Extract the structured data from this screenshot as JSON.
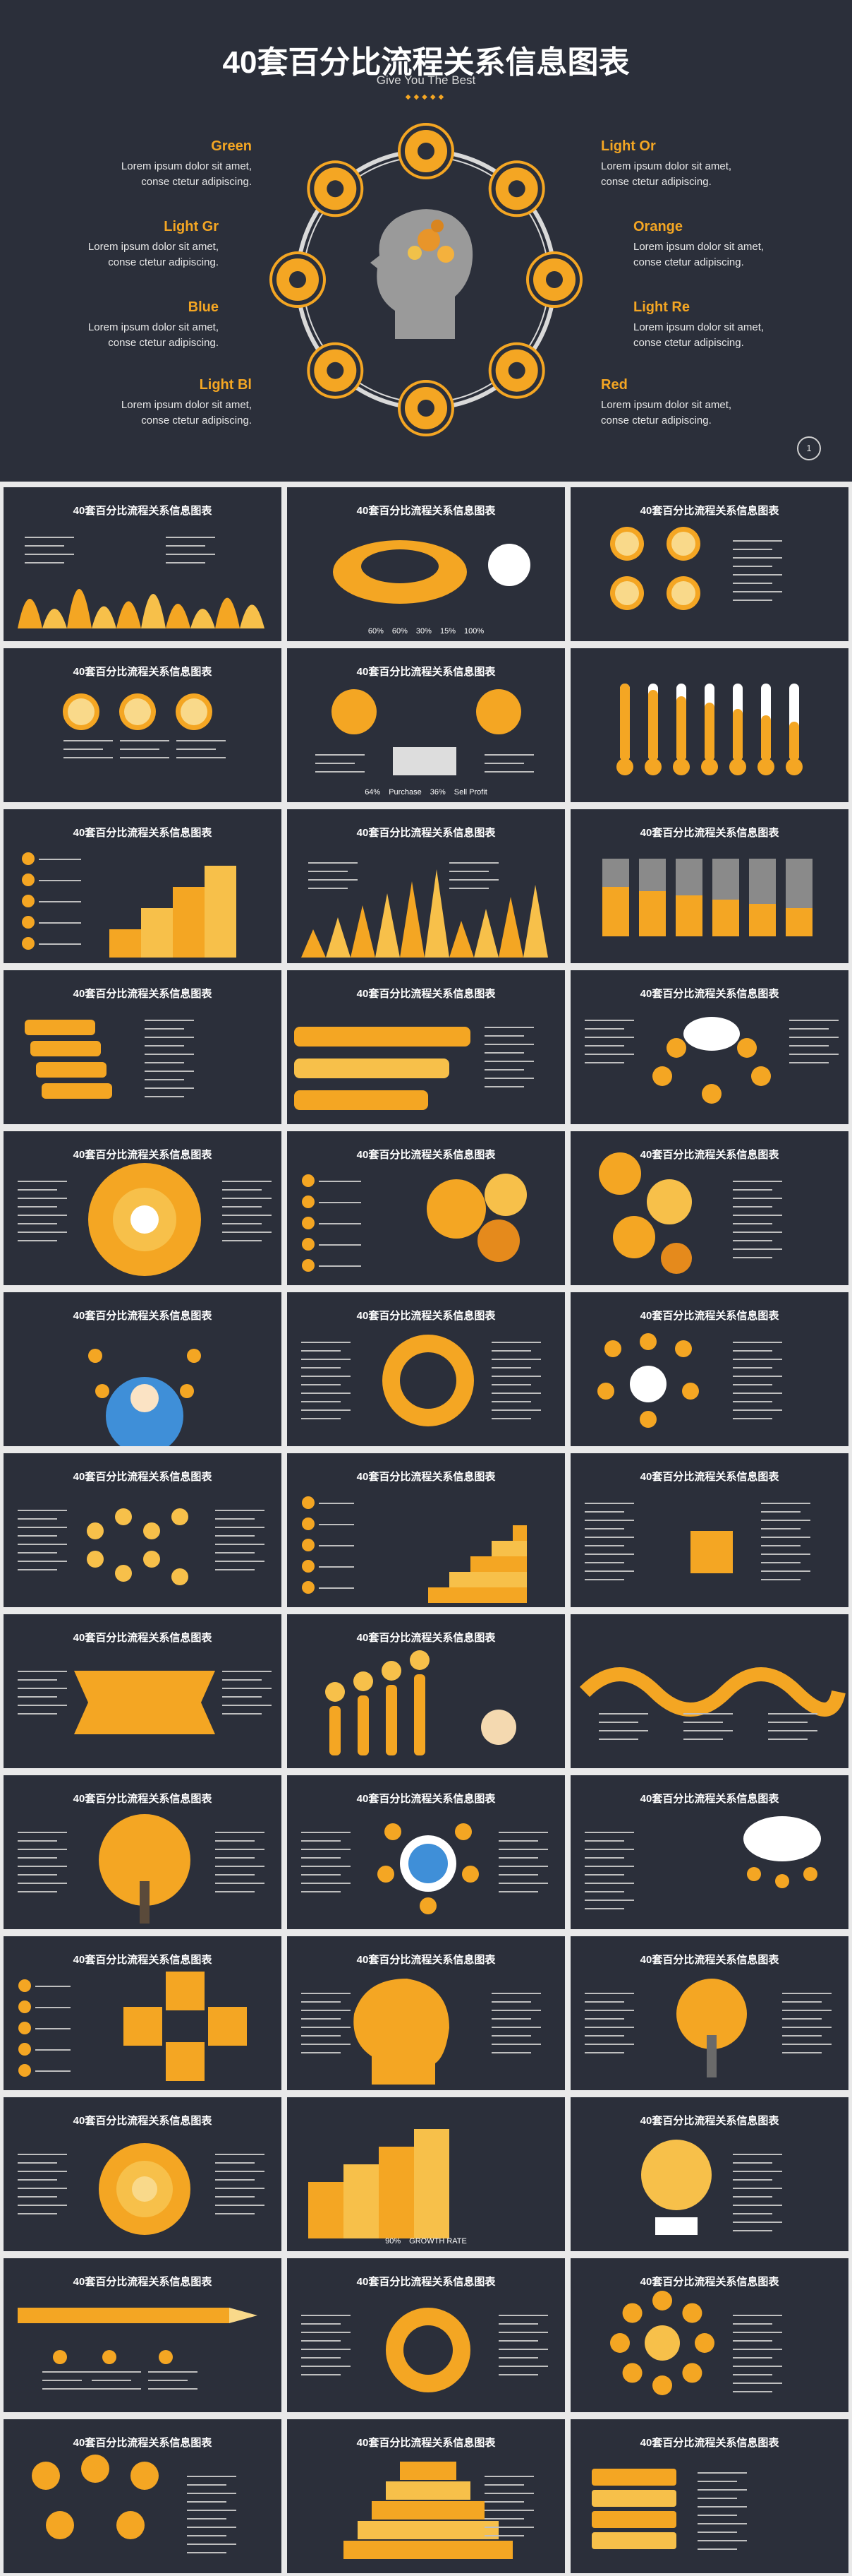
{
  "hero": {
    "title": "40套百分比流程关系信息图表",
    "subtitle": "Give You The Best",
    "dots": "◆◆◆◆◆",
    "page": "1",
    "labels": [
      {
        "title": "Green",
        "line1": "Lorem ipsum dolor sit amet,",
        "line2": "conse ctetur adipiscing."
      },
      {
        "title": "Light Gr",
        "line1": "Lorem ipsum dolor sit amet,",
        "line2": "conse ctetur adipiscing."
      },
      {
        "title": "Blue",
        "line1": "Lorem ipsum dolor sit amet,",
        "line2": "conse ctetur adipiscing."
      },
      {
        "title": "Light Bl",
        "line1": "Lorem ipsum dolor sit amet,",
        "line2": "conse ctetur adipiscing."
      },
      {
        "title": "Light Or",
        "line1": "Lorem ipsum dolor sit amet,",
        "line2": "conse ctetur adipiscing."
      },
      {
        "title": "Orange",
        "line1": "Lorem ipsum dolor sit amet,",
        "line2": "conse ctetur adipiscing."
      },
      {
        "title": "Light Re",
        "line1": "Lorem ipsum dolor sit amet,",
        "line2": "conse ctetur adipiscing."
      },
      {
        "title": "Red",
        "line1": "Lorem ipsum dolor sit amet,",
        "line2": "conse ctetur adipiscing."
      }
    ]
  },
  "thumbs": [
    {
      "title": "40套百分比流程关系信息图表",
      "kind": "mountains"
    },
    {
      "title": "40套百分比流程关系信息图表",
      "kind": "ring3d",
      "text": [
        "60%",
        "60%",
        "30%",
        "15%",
        "100%"
      ]
    },
    {
      "title": "40套百分比流程关系信息图表",
      "kind": "circles4"
    },
    {
      "title": "40套百分比流程关系信息图表",
      "kind": "circles3"
    },
    {
      "title": "40套百分比流程关系信息图表",
      "kind": "purchase",
      "text": [
        "64%",
        "Purchase",
        "36%",
        "Sell Profit"
      ]
    },
    {
      "title": "",
      "kind": "thermo"
    },
    {
      "title": "40套百分比流程关系信息图表",
      "kind": "steps"
    },
    {
      "title": "40套百分比流程关系信息图表",
      "kind": "spikes"
    },
    {
      "title": "40套百分比流程关系信息图表",
      "kind": "cylinders"
    },
    {
      "title": "40套百分比流程关系信息图表",
      "kind": "chat"
    },
    {
      "title": "40套百分比流程关系信息图表",
      "kind": "bars3"
    },
    {
      "title": "40套百分比流程关系信息图表",
      "kind": "cloud"
    },
    {
      "title": "40套百分比流程关系信息图表",
      "kind": "wheel"
    },
    {
      "title": "40套百分比流程关系信息图表",
      "kind": "gears"
    },
    {
      "title": "40套百分比流程关系信息图表",
      "kind": "gears2"
    },
    {
      "title": "40套百分比流程关系信息图表",
      "kind": "person"
    },
    {
      "title": "40套百分比流程关系信息图表",
      "kind": "wheel6"
    },
    {
      "title": "40套百分比流程关系信息图表",
      "kind": "seo"
    },
    {
      "title": "40套百分比流程关系信息图表",
      "kind": "molecule"
    },
    {
      "title": "40套百分比流程关系信息图表",
      "kind": "stairs"
    },
    {
      "title": "40套百分比流程关系信息图表",
      "kind": "books"
    },
    {
      "title": "40套百分比流程关系信息图表",
      "kind": "ribbon"
    },
    {
      "title": "40套百分比流程关系信息图表",
      "kind": "tubes"
    },
    {
      "title": "",
      "kind": "wave"
    },
    {
      "title": "40套百分比流程关系信息图表",
      "kind": "tree"
    },
    {
      "title": "40套百分比流程关系信息图表",
      "kind": "seocircle"
    },
    {
      "title": "40套百分比流程关系信息图表",
      "kind": "seocloud"
    },
    {
      "title": "40套百分比流程关系信息图表",
      "kind": "arrows"
    },
    {
      "title": "40套百分比流程关系信息图表",
      "kind": "head"
    },
    {
      "title": "40套百分比流程关系信息图表",
      "kind": "tree2"
    },
    {
      "title": "40套百分比流程关系信息图表",
      "kind": "pie"
    },
    {
      "title": "",
      "kind": "growth",
      "text": [
        "90%",
        "GROWTH RATE"
      ]
    },
    {
      "title": "40套百分比流程关系信息图表",
      "kind": "bulbs"
    },
    {
      "title": "40套百分比流程关系信息图表",
      "kind": "pencil"
    },
    {
      "title": "40套百分比流程关系信息图表",
      "kind": "donut"
    },
    {
      "title": "40套百分比流程关系信息图表",
      "kind": "arrows8"
    },
    {
      "title": "40套百分比流程关系信息图表",
      "kind": "team"
    },
    {
      "title": "40套百分比流程关系信息图表",
      "kind": "pyramid"
    },
    {
      "title": "40套百分比流程关系信息图表",
      "kind": "bookstack"
    }
  ]
}
